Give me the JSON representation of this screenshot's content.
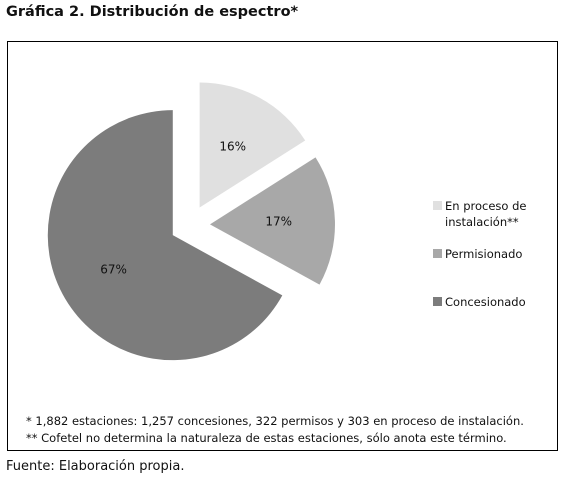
{
  "figure": {
    "title": "Gráfica 2. Distribución de espectro*",
    "source": "Fuente: Elaboración propia.",
    "notes": [
      "* 1,882 estaciones: 1,257 concesiones, 322 permisos y 303 en proceso de instalación.",
      "** Cofetel no determina la naturaleza de estas estaciones, sólo anota este término."
    ]
  },
  "chart_data": {
    "type": "pie",
    "style": "exploded",
    "legend_position": "right",
    "series": [
      {
        "slices": [
          {
            "label": "En proceso de instalación**",
            "value": 16,
            "data_label": "16%",
            "color": "#e0e0e0"
          },
          {
            "label": "Permisionado",
            "value": 17,
            "data_label": "17%",
            "color": "#a8a8a8"
          },
          {
            "label": "Concesionado",
            "value": 67,
            "data_label": "67%",
            "color": "#7c7c7c"
          }
        ]
      }
    ]
  }
}
